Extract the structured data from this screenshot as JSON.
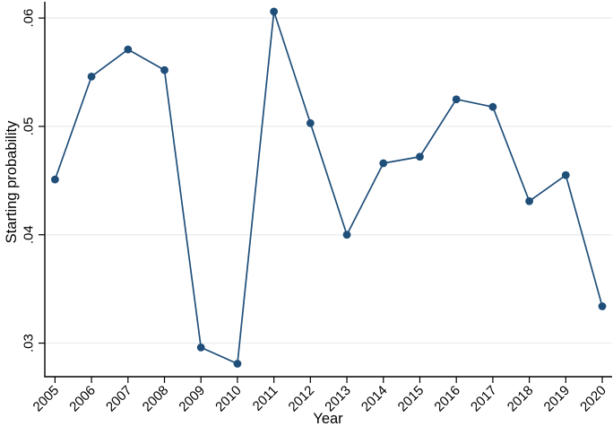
{
  "chart_data": {
    "type": "line",
    "title": "",
    "xlabel": "Year",
    "ylabel": "Starting probability",
    "x": [
      2005,
      2006,
      2007,
      2008,
      2009,
      2010,
      2011,
      2012,
      2013,
      2014,
      2015,
      2016,
      2017,
      2018,
      2019,
      2020
    ],
    "xtick_labels": [
      "2005",
      "2006",
      "2007",
      "2008",
      "2009",
      "2010",
      "2011",
      "2012",
      "2013",
      "2014",
      "2015",
      "2016",
      "2017",
      "2018",
      "2019",
      "2020"
    ],
    "series": [
      {
        "name": "starting-probability",
        "values": [
          0.0451,
          0.0546,
          0.0571,
          0.0552,
          0.0296,
          0.0281,
          0.0606,
          0.0503,
          0.04,
          0.0466,
          0.0472,
          0.0525,
          0.0518,
          0.0431,
          0.0455,
          0.0334
        ]
      }
    ],
    "yticks": [
      0.03,
      0.04,
      0.05,
      0.06
    ],
    "ytick_labels": [
      ".03",
      ".04",
      ".05",
      ".06"
    ],
    "xlim": [
      2004.72,
      2020.27
    ],
    "ylim": [
      0.0269,
      0.0615
    ],
    "grid": true,
    "legend": false,
    "marker": "circle",
    "line_color": "#1f4e79",
    "grid_color": "#ebeef0",
    "axis_color": "#000000"
  }
}
